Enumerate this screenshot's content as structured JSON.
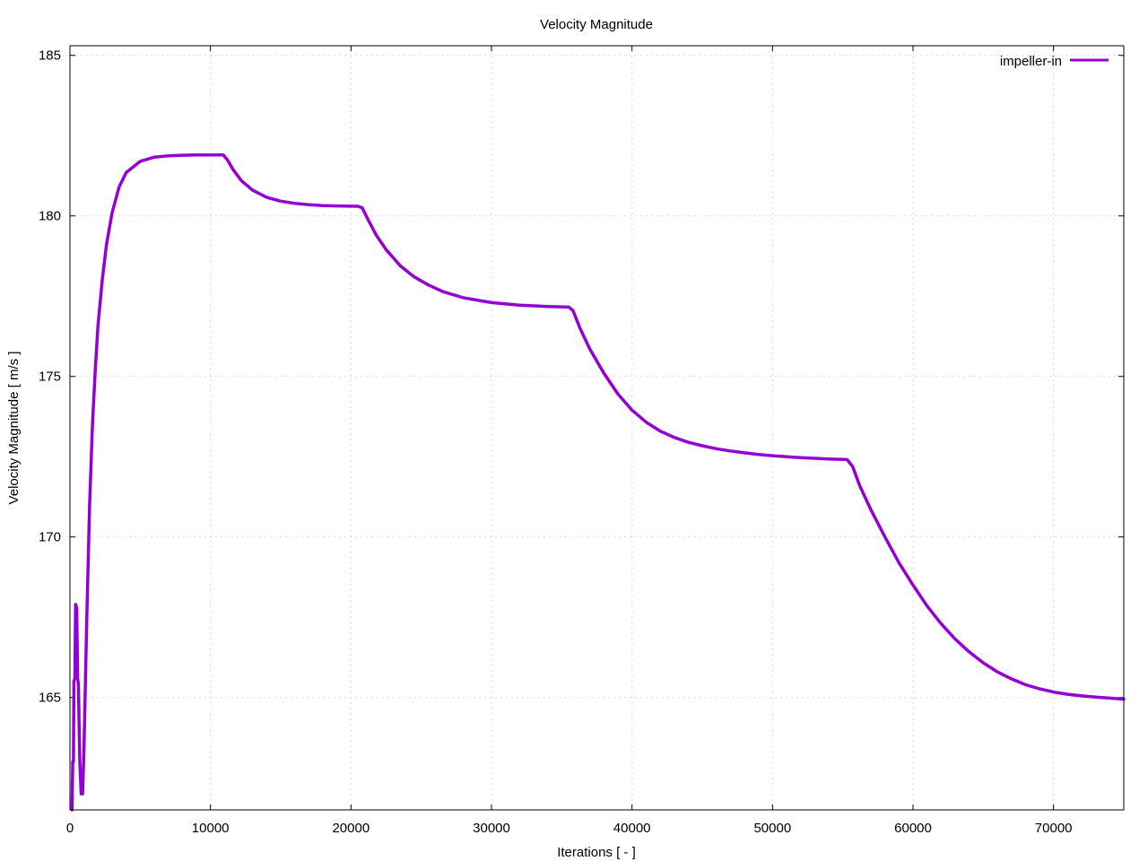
{
  "chart_data": {
    "type": "line",
    "title": "Velocity Magnitude",
    "xlabel": "Iterations [ - ]",
    "ylabel": "Velocity Magnitude [ m/s ]",
    "xlim": [
      0,
      75000
    ],
    "ylim": [
      161.5,
      185.3
    ],
    "xticks": [
      0,
      10000,
      20000,
      30000,
      40000,
      50000,
      60000,
      70000
    ],
    "yticks": [
      165,
      170,
      175,
      180,
      185
    ],
    "grid": true,
    "legend_position": "top-right",
    "series": [
      {
        "name": "impeller-in",
        "color": "#9400d3",
        "points": [
          [
            150,
            161.5
          ],
          [
            200,
            163.0
          ],
          [
            250,
            163.0
          ],
          [
            280,
            165.5
          ],
          [
            350,
            165.6
          ],
          [
            400,
            167.9
          ],
          [
            480,
            167.8
          ],
          [
            550,
            165.6
          ],
          [
            600,
            165.4
          ],
          [
            700,
            163.0
          ],
          [
            800,
            162.0
          ],
          [
            900,
            162.0
          ],
          [
            1000,
            163.5
          ],
          [
            1200,
            167.5
          ],
          [
            1400,
            171.0
          ],
          [
            1600,
            173.5
          ],
          [
            1800,
            175.2
          ],
          [
            2000,
            176.6
          ],
          [
            2300,
            178.0
          ],
          [
            2600,
            179.1
          ],
          [
            3000,
            180.1
          ],
          [
            3500,
            180.9
          ],
          [
            4000,
            181.35
          ],
          [
            5000,
            181.7
          ],
          [
            6000,
            181.83
          ],
          [
            7000,
            181.87
          ],
          [
            8000,
            181.89
          ],
          [
            9000,
            181.9
          ],
          [
            10000,
            181.9
          ],
          [
            10900,
            181.9
          ],
          [
            11200,
            181.75
          ],
          [
            11600,
            181.45
          ],
          [
            12200,
            181.1
          ],
          [
            13000,
            180.8
          ],
          [
            14000,
            180.58
          ],
          [
            15000,
            180.46
          ],
          [
            16000,
            180.39
          ],
          [
            17000,
            180.35
          ],
          [
            18000,
            180.32
          ],
          [
            19000,
            180.31
          ],
          [
            20500,
            180.3
          ],
          [
            20800,
            180.25
          ],
          [
            21200,
            179.9
          ],
          [
            21800,
            179.4
          ],
          [
            22500,
            178.95
          ],
          [
            23500,
            178.45
          ],
          [
            24500,
            178.1
          ],
          [
            25500,
            177.85
          ],
          [
            26500,
            177.65
          ],
          [
            28000,
            177.45
          ],
          [
            30000,
            177.3
          ],
          [
            32000,
            177.22
          ],
          [
            34000,
            177.18
          ],
          [
            35500,
            177.16
          ],
          [
            35800,
            177.05
          ],
          [
            36300,
            176.5
          ],
          [
            37000,
            175.85
          ],
          [
            38000,
            175.1
          ],
          [
            39000,
            174.45
          ],
          [
            40000,
            173.95
          ],
          [
            41000,
            173.58
          ],
          [
            42000,
            173.3
          ],
          [
            43000,
            173.1
          ],
          [
            44000,
            172.95
          ],
          [
            45000,
            172.84
          ],
          [
            46000,
            172.75
          ],
          [
            47000,
            172.68
          ],
          [
            48000,
            172.62
          ],
          [
            49000,
            172.57
          ],
          [
            50000,
            172.53
          ],
          [
            52000,
            172.47
          ],
          [
            54000,
            172.43
          ],
          [
            55300,
            172.41
          ],
          [
            55700,
            172.2
          ],
          [
            56200,
            171.6
          ],
          [
            57000,
            170.85
          ],
          [
            58000,
            170.0
          ],
          [
            59000,
            169.2
          ],
          [
            60000,
            168.5
          ],
          [
            61000,
            167.85
          ],
          [
            62000,
            167.3
          ],
          [
            63000,
            166.82
          ],
          [
            64000,
            166.42
          ],
          [
            65000,
            166.08
          ],
          [
            66000,
            165.8
          ],
          [
            67000,
            165.58
          ],
          [
            68000,
            165.4
          ],
          [
            69000,
            165.27
          ],
          [
            70000,
            165.17
          ],
          [
            71000,
            165.1
          ],
          [
            72000,
            165.05
          ],
          [
            73000,
            165.01
          ],
          [
            74000,
            164.98
          ],
          [
            75000,
            164.95
          ]
        ]
      }
    ]
  }
}
